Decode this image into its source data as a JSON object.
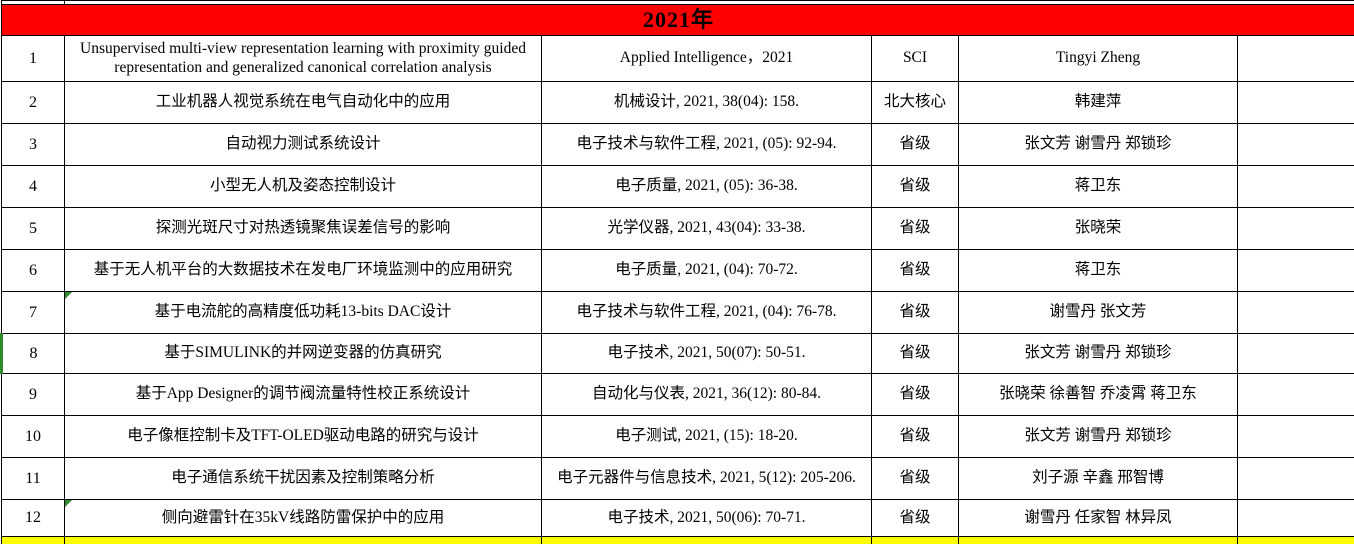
{
  "header": {
    "title": "2021年",
    "bg_color": "#FF0000"
  },
  "colors": {
    "header_bg": "#FF0000",
    "highlight_row_bg": "#FFFF00",
    "marker_green": "#2E8B2E"
  },
  "columns": [
    "row-number",
    "paper-title",
    "journal-info",
    "level",
    "authors",
    "notes"
  ],
  "rows": [
    {
      "num": "1",
      "title": "Unsupervised multi-view representation learning with proximity guided representation and generalized canonical correlation analysis",
      "journal": "Applied Intelligence，2021",
      "level": "SCI",
      "authors": "Tingyi Zheng",
      "notes": "",
      "marker": false,
      "green_left": false
    },
    {
      "num": "2",
      "title": "工业机器人视觉系统在电气自动化中的应用",
      "journal": "机械设计, 2021, 38(04): 158.",
      "level": "北大核心",
      "authors": "韩建萍",
      "notes": "",
      "marker": false,
      "green_left": false
    },
    {
      "num": "3",
      "title": "自动视力测试系统设计",
      "journal": "电子技术与软件工程, 2021, (05): 92-94.",
      "level": "省级",
      "authors": "张文芳 谢雪丹 郑锁珍",
      "notes": "",
      "marker": false,
      "green_left": false
    },
    {
      "num": "4",
      "title": "小型无人机及姿态控制设计",
      "journal": "电子质量, 2021, (05): 36-38.",
      "level": "省级",
      "authors": "蒋卫东",
      "notes": "",
      "marker": false,
      "green_left": false
    },
    {
      "num": "5",
      "title": "探测光斑尺寸对热透镜聚焦误差信号的影响",
      "journal": "光学仪器, 2021, 43(04): 33-38.",
      "level": "省级",
      "authors": "张晓荣",
      "notes": "",
      "marker": false,
      "green_left": false
    },
    {
      "num": "6",
      "title": "基于无人机平台的大数据技术在发电厂环境监测中的应用研究",
      "journal": "电子质量, 2021, (04): 70-72.",
      "level": "省级",
      "authors": "蒋卫东",
      "notes": "",
      "marker": false,
      "green_left": false
    },
    {
      "num": "7",
      "title": "基于电流舵的高精度低功耗13-bits DAC设计",
      "journal": "电子技术与软件工程, 2021, (04): 76-78.",
      "level": "省级",
      "authors": "谢雪丹 张文芳",
      "notes": "",
      "marker": true,
      "green_left": false
    },
    {
      "num": "8",
      "title": "基于SIMULINK的并网逆变器的仿真研究",
      "journal": "电子技术, 2021, 50(07): 50-51.",
      "level": "省级",
      "authors": "张文芳 谢雪丹 郑锁珍",
      "notes": "",
      "marker": false,
      "green_left": true
    },
    {
      "num": "9",
      "title": "基于App Designer的调节阀流量特性校正系统设计",
      "journal": "自动化与仪表, 2021, 36(12): 80-84.",
      "level": "省级",
      "authors": "张晓荣 徐善智 乔凌霄  蒋卫东",
      "notes": "",
      "marker": false,
      "green_left": false
    },
    {
      "num": "10",
      "title": "电子像框控制卡及TFT-OLED驱动电路的研究与设计",
      "journal": "电子测试, 2021, (15): 18-20.",
      "level": "省级",
      "authors": "张文芳 谢雪丹 郑锁珍",
      "notes": "",
      "marker": false,
      "green_left": false
    },
    {
      "num": "11",
      "title": "电子通信系统干扰因素及控制策略分析",
      "journal": "电子元器件与信息技术, 2021, 5(12): 205-206.",
      "level": "省级",
      "authors": "刘子源 辛鑫 邢智博",
      "notes": "",
      "marker": false,
      "green_left": false
    },
    {
      "num": "12",
      "title": "侧向避雷针在35kV线路防雷保护中的应用",
      "journal": "电子技术, 2021, 50(06): 70-71.",
      "level": "省级",
      "authors": "谢雪丹 任家智 林异凤",
      "notes": "",
      "marker": true,
      "green_left": false
    }
  ]
}
